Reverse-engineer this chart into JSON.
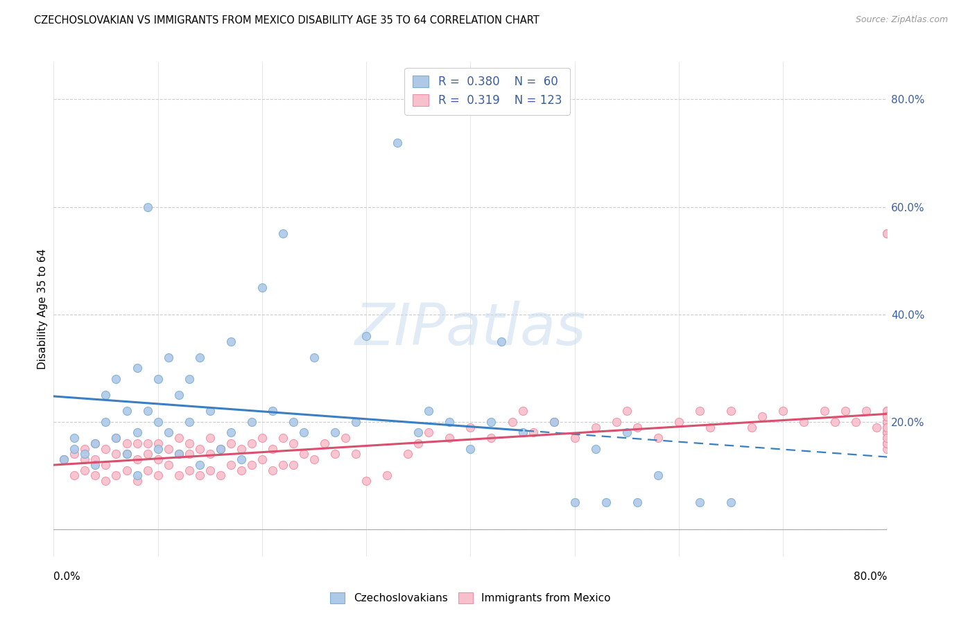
{
  "title": "CZECHOSLOVAKIAN VS IMMIGRANTS FROM MEXICO DISABILITY AGE 35 TO 64 CORRELATION CHART",
  "source": "Source: ZipAtlas.com",
  "ylabel": "Disability Age 35 to 64",
  "legend_entries": [
    {
      "label": "Czechoslovakians",
      "R": 0.38,
      "N": 60
    },
    {
      "label": "Immigrants from Mexico",
      "R": 0.319,
      "N": 123
    }
  ],
  "blue_edge": "#7bafd4",
  "blue_face": "#aec9e8",
  "pink_edge": "#f090a8",
  "pink_face": "#f8bfcc",
  "blue_line_color": "#3a7fc1",
  "pink_line_color": "#d94f6e",
  "label_color": "#3a5fa0",
  "grid_color": "#cccccc",
  "background_color": "#ffffff",
  "xlim": [
    0.0,
    0.8
  ],
  "ylim": [
    -0.05,
    0.87
  ],
  "blue_x": [
    0.01,
    0.02,
    0.02,
    0.03,
    0.04,
    0.04,
    0.05,
    0.05,
    0.06,
    0.06,
    0.07,
    0.07,
    0.08,
    0.08,
    0.08,
    0.09,
    0.09,
    0.1,
    0.1,
    0.1,
    0.11,
    0.11,
    0.12,
    0.12,
    0.13,
    0.13,
    0.14,
    0.14,
    0.15,
    0.16,
    0.17,
    0.17,
    0.18,
    0.19,
    0.2,
    0.21,
    0.22,
    0.23,
    0.24,
    0.25,
    0.27,
    0.29,
    0.3,
    0.33,
    0.35,
    0.36,
    0.38,
    0.4,
    0.42,
    0.43,
    0.45,
    0.48,
    0.5,
    0.52,
    0.53,
    0.55,
    0.56,
    0.58,
    0.62,
    0.65
  ],
  "blue_y": [
    0.13,
    0.15,
    0.17,
    0.14,
    0.12,
    0.16,
    0.2,
    0.25,
    0.17,
    0.28,
    0.14,
    0.22,
    0.1,
    0.18,
    0.3,
    0.22,
    0.6,
    0.15,
    0.2,
    0.28,
    0.18,
    0.32,
    0.14,
    0.25,
    0.2,
    0.28,
    0.12,
    0.32,
    0.22,
    0.15,
    0.18,
    0.35,
    0.13,
    0.2,
    0.45,
    0.22,
    0.55,
    0.2,
    0.18,
    0.32,
    0.18,
    0.2,
    0.36,
    0.72,
    0.18,
    0.22,
    0.2,
    0.15,
    0.2,
    0.35,
    0.18,
    0.2,
    0.05,
    0.15,
    0.05,
    0.18,
    0.05,
    0.1,
    0.05,
    0.05
  ],
  "pink_x": [
    0.01,
    0.02,
    0.02,
    0.03,
    0.03,
    0.03,
    0.04,
    0.04,
    0.04,
    0.05,
    0.05,
    0.05,
    0.06,
    0.06,
    0.06,
    0.07,
    0.07,
    0.07,
    0.08,
    0.08,
    0.08,
    0.09,
    0.09,
    0.09,
    0.1,
    0.1,
    0.1,
    0.11,
    0.11,
    0.12,
    0.12,
    0.12,
    0.13,
    0.13,
    0.13,
    0.14,
    0.14,
    0.15,
    0.15,
    0.15,
    0.16,
    0.16,
    0.17,
    0.17,
    0.18,
    0.18,
    0.19,
    0.19,
    0.2,
    0.2,
    0.21,
    0.21,
    0.22,
    0.22,
    0.23,
    0.23,
    0.24,
    0.25,
    0.26,
    0.27,
    0.28,
    0.29,
    0.3,
    0.32,
    0.34,
    0.35,
    0.36,
    0.38,
    0.4,
    0.42,
    0.44,
    0.45,
    0.46,
    0.48,
    0.5,
    0.52,
    0.54,
    0.55,
    0.56,
    0.58,
    0.6,
    0.62,
    0.63,
    0.65,
    0.67,
    0.68,
    0.7,
    0.72,
    0.74,
    0.75,
    0.76,
    0.77,
    0.78,
    0.79,
    0.8,
    0.8,
    0.8,
    0.8,
    0.8,
    0.8,
    0.8,
    0.8,
    0.8,
    0.8,
    0.8,
    0.8,
    0.8,
    0.8,
    0.8,
    0.8,
    0.8,
    0.8,
    0.8,
    0.8,
    0.8,
    0.8,
    0.8,
    0.8,
    0.8,
    0.8,
    0.8,
    0.8,
    0.8
  ],
  "pink_y": [
    0.13,
    0.1,
    0.14,
    0.11,
    0.13,
    0.15,
    0.1,
    0.13,
    0.16,
    0.09,
    0.12,
    0.15,
    0.1,
    0.14,
    0.17,
    0.11,
    0.14,
    0.16,
    0.09,
    0.13,
    0.16,
    0.11,
    0.14,
    0.16,
    0.1,
    0.13,
    0.16,
    0.12,
    0.15,
    0.1,
    0.14,
    0.17,
    0.11,
    0.14,
    0.16,
    0.1,
    0.15,
    0.11,
    0.14,
    0.17,
    0.1,
    0.15,
    0.12,
    0.16,
    0.11,
    0.15,
    0.12,
    0.16,
    0.13,
    0.17,
    0.11,
    0.15,
    0.12,
    0.17,
    0.12,
    0.16,
    0.14,
    0.13,
    0.16,
    0.14,
    0.17,
    0.14,
    0.09,
    0.1,
    0.14,
    0.16,
    0.18,
    0.17,
    0.19,
    0.17,
    0.2,
    0.22,
    0.18,
    0.2,
    0.17,
    0.19,
    0.2,
    0.22,
    0.19,
    0.17,
    0.2,
    0.22,
    0.19,
    0.22,
    0.19,
    0.21,
    0.22,
    0.2,
    0.22,
    0.2,
    0.22,
    0.2,
    0.22,
    0.19,
    0.55,
    0.2,
    0.55,
    0.18,
    0.2,
    0.22,
    0.18,
    0.2,
    0.22,
    0.18,
    0.15,
    0.17,
    0.2,
    0.18,
    0.16,
    0.19,
    0.21,
    0.18,
    0.2,
    0.16,
    0.18,
    0.2,
    0.18,
    0.16,
    0.19,
    0.21,
    0.17,
    0.19,
    0.21
  ],
  "watermark_text": "ZIPatlas",
  "watermark_color": "#c5d8ef",
  "watermark_alpha": 0.5
}
